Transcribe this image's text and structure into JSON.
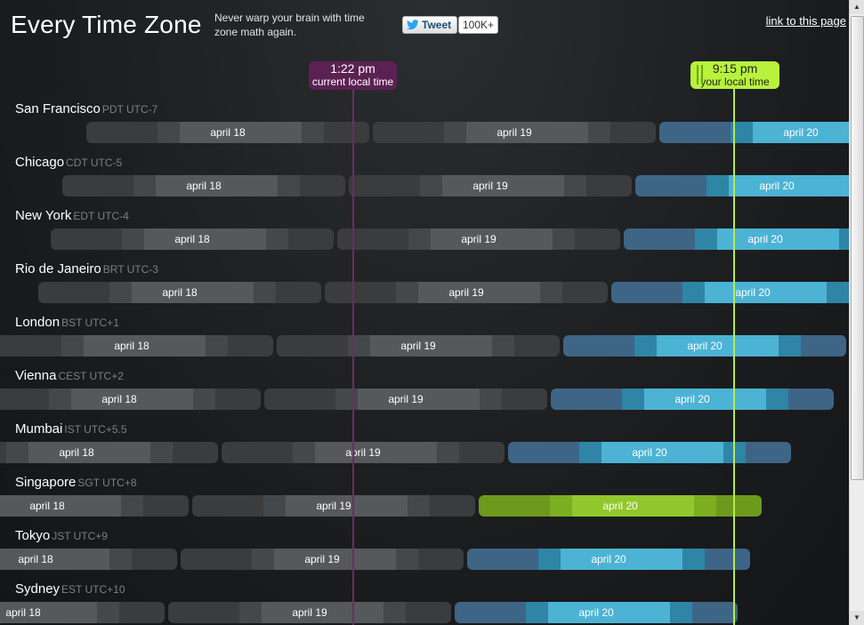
{
  "header": {
    "title": "Every Time Zone",
    "tagline": "Never warp your brain with time zone math again.",
    "tweet_label": "Tweet",
    "tweet_count": "100K+",
    "permalink": "link to this page"
  },
  "markers": {
    "current": {
      "time": "1:22 pm",
      "label": "current local time"
    },
    "local": {
      "time": "9:15 pm",
      "label": "your local time"
    }
  },
  "colors": {
    "past_day": "#4a4d4f",
    "today": "#3fa3c7",
    "local_today": "#8fc42a",
    "current_marker": "#5b2153",
    "local_marker": "#b9f23c"
  },
  "zones": [
    {
      "city": "San Francisco",
      "abbr": "PDT UTC-7",
      "days": [
        "april 18",
        "april 19",
        "april 20"
      ]
    },
    {
      "city": "Chicago",
      "abbr": "CDT UTC-5",
      "days": [
        "april 18",
        "april 19",
        "april 20"
      ]
    },
    {
      "city": "New York",
      "abbr": "EDT UTC-4",
      "days": [
        "april 18",
        "april 19",
        "april 20"
      ]
    },
    {
      "city": "Rio de Janeiro",
      "abbr": "BRT UTC-3",
      "days": [
        "april 18",
        "april 19",
        "april 20"
      ]
    },
    {
      "city": "London",
      "abbr": "BST UTC+1",
      "days": [
        "april 18",
        "april 19",
        "april 20"
      ]
    },
    {
      "city": "Vienna",
      "abbr": "CEST UTC+2",
      "days": [
        "april 18",
        "april 19",
        "april 20"
      ]
    },
    {
      "city": "Mumbai",
      "abbr": "IST UTC+5.5",
      "days": [
        "april 18",
        "april 19",
        "april 20"
      ]
    },
    {
      "city": "Singapore",
      "abbr": "SGT UTC+8",
      "days": [
        "april 18",
        "april 19",
        "april 20"
      ]
    },
    {
      "city": "Tokyo",
      "abbr": "JST UTC+9",
      "days": [
        "april 18",
        "april 19",
        "april 20"
      ]
    },
    {
      "city": "Sydney",
      "abbr": "EST UTC+10",
      "days": [
        "april 18",
        "april 19",
        "april 20"
      ]
    }
  ]
}
